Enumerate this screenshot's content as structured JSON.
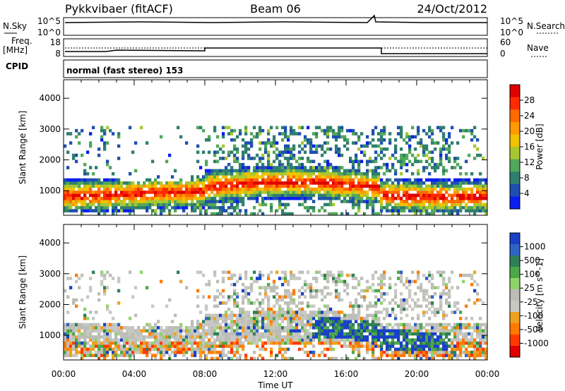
{
  "header": {
    "title": "Pykkvibaer (fitACF)",
    "beam": "Beam 06",
    "date": "24/Oct/2012"
  },
  "strips": {
    "nsky_label": "N.Sky",
    "nsearch_label": "N.Search",
    "nsky_ticks": [
      "10^5",
      "10^0"
    ],
    "nsearch_ticks": [
      "10^5",
      "10^0"
    ],
    "freq_label": "Freq.",
    "freq_unit": "[MHz]",
    "freq_ticks": [
      "18",
      "8"
    ],
    "nave_label": "Nave",
    "nave_ticks": [
      "60",
      "0"
    ],
    "cpid_label": "CPID",
    "cpid_text": "normal (fast stereo) 153"
  },
  "chart_data": [
    {
      "type": "heatmap",
      "panel": "power",
      "ylabel": "Slant Range [km]",
      "colorbar_label": "Power [dB]",
      "colorbar_ticks": [
        "28",
        "24",
        "20",
        "16",
        "12",
        "8",
        "4"
      ],
      "colorbar_colors": [
        "#e00000",
        "#ff2a00",
        "#ff6a00",
        "#ff9a00",
        "#f2c200",
        "#a9c830",
        "#52a85a",
        "#2f7f6e",
        "#1f4fb0",
        "#0a1ef0"
      ],
      "y_ticks": [
        "4000",
        "3000",
        "2000",
        "1000"
      ],
      "ylim": [
        200,
        4600
      ],
      "xlim": [
        0,
        24
      ]
    },
    {
      "type": "heatmap",
      "panel": "velocity",
      "xlabel": "Time UT",
      "ylabel": "Slant Range [km]",
      "colorbar_label": "Velocity [m s^-1]",
      "colorbar_ticks": [
        "1000",
        "500",
        "100",
        "25",
        "-25",
        "-100",
        "-500",
        "-1000"
      ],
      "colorbar_colors": [
        "#1a40c8",
        "#2f63c6",
        "#2f7f57",
        "#4da84a",
        "#8fd46a",
        "#bdbdb8",
        "#c8c8c2",
        "#f0a020",
        "#ff7a00",
        "#ff3a00",
        "#e00000"
      ],
      "x_ticks": [
        "00:00",
        "04:00",
        "08:00",
        "12:00",
        "16:00",
        "20:00",
        "00:00"
      ],
      "y_ticks": [
        "4000",
        "3000",
        "2000",
        "1000"
      ],
      "ylim": [
        200,
        4600
      ],
      "xlim": [
        0,
        24
      ]
    }
  ]
}
